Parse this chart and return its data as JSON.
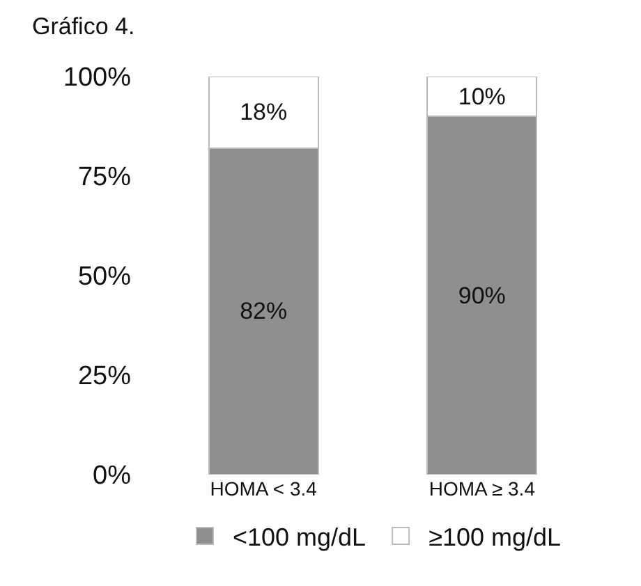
{
  "chart_data": {
    "type": "bar",
    "title": "Gráfico 4.",
    "categories": [
      "HOMA < 3.4",
      "HOMA ≥ 3.4"
    ],
    "stacked": true,
    "legend": "bottom",
    "grid": false,
    "series": [
      {
        "name": "<100 mg/dL",
        "color": "#8f8f8f",
        "values": [
          82,
          90
        ],
        "value_labels": [
          "82%",
          "90%"
        ]
      },
      {
        "name": "≥100 mg/dL",
        "color": "#ffffff",
        "values": [
          18,
          10
        ],
        "value_labels": [
          "18%",
          "10%"
        ]
      }
    ],
    "ylim": [
      0,
      100
    ],
    "yticks": [
      {
        "value": 0,
        "label": "0%"
      },
      {
        "value": 25,
        "label": "25%"
      },
      {
        "value": 50,
        "label": "50%"
      },
      {
        "value": 75,
        "label": "75%"
      },
      {
        "value": 100,
        "label": "100%"
      }
    ]
  }
}
